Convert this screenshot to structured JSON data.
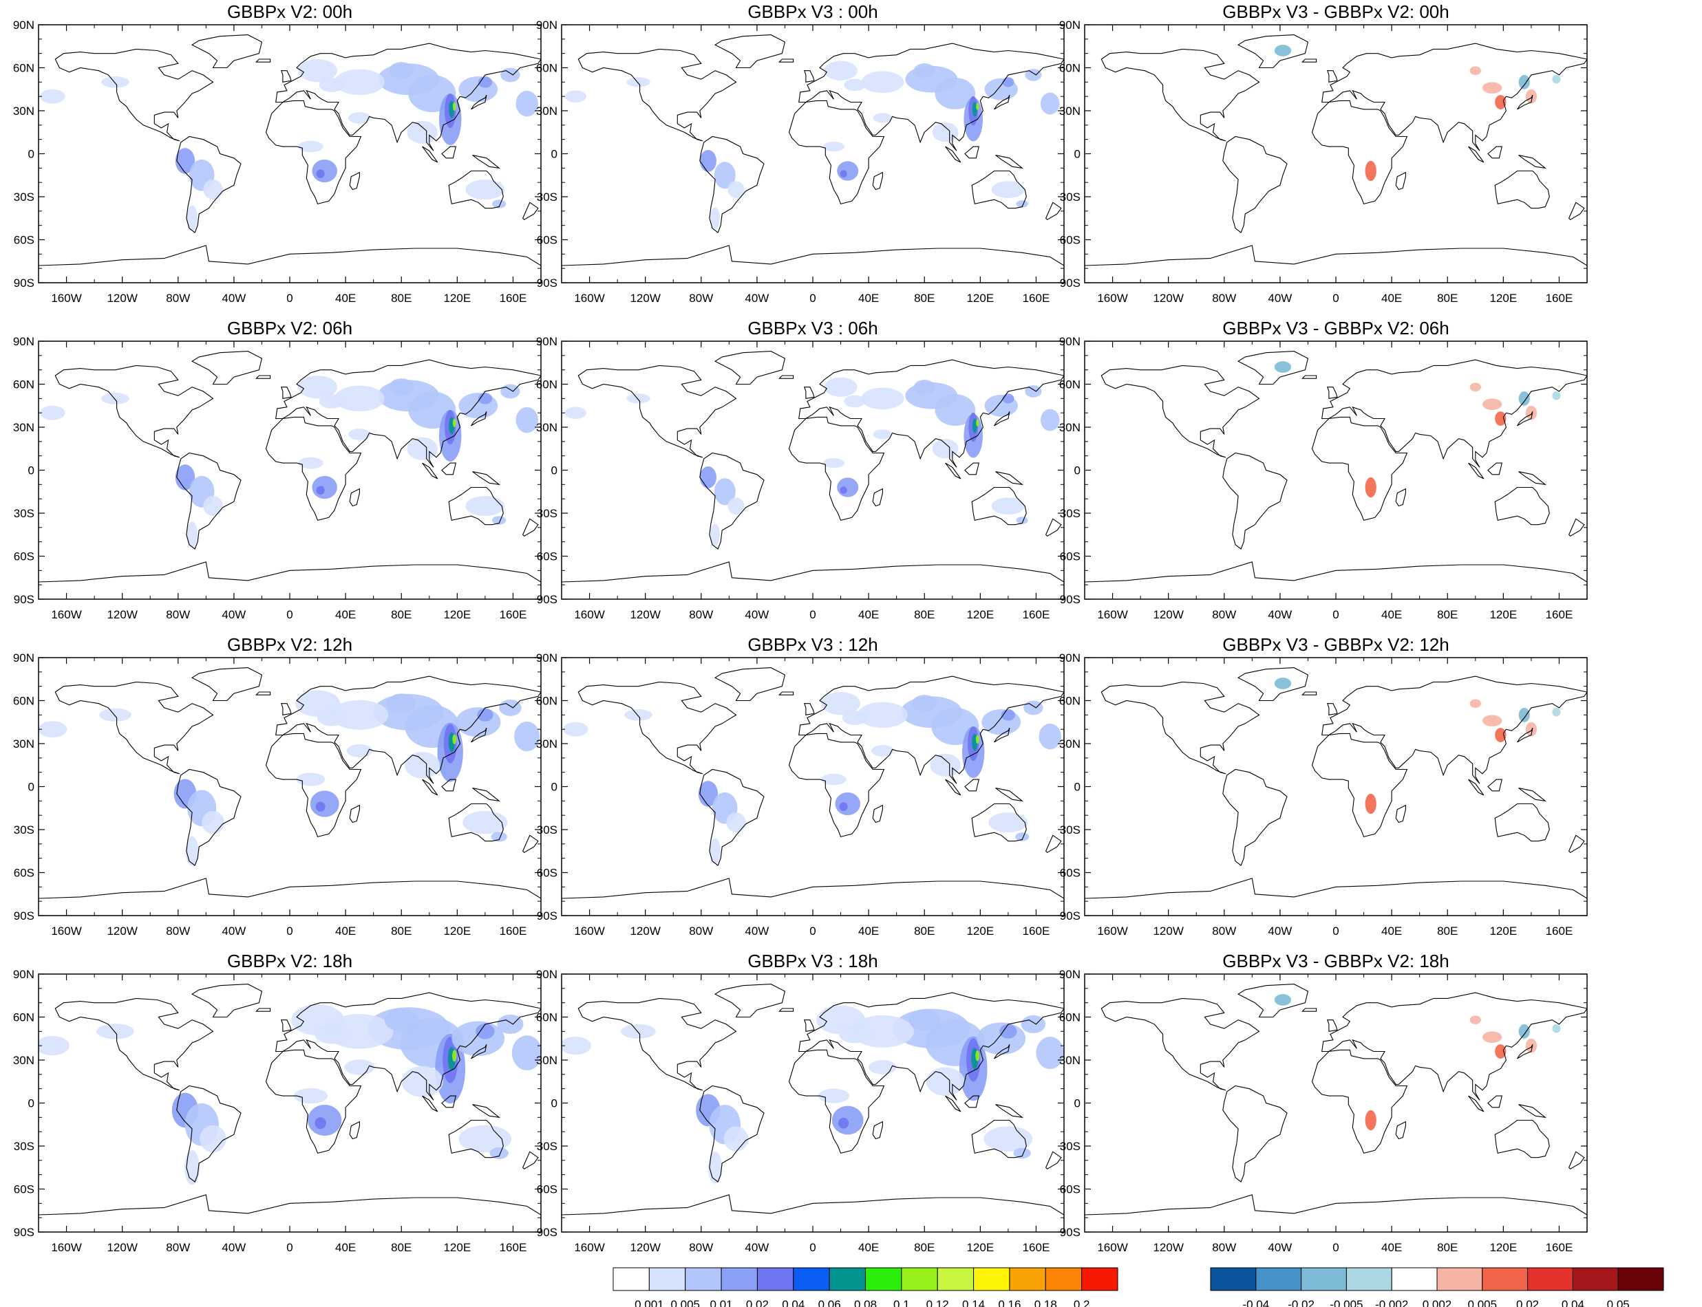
{
  "panels": [
    {
      "title": "GBBPx V2: 00h",
      "kind": "abs",
      "scale": 1.0
    },
    {
      "title": "GBBPx V3 : 00h",
      "kind": "abs",
      "scale": 0.85
    },
    {
      "title": "GBBPx V3 - GBBPx V2: 00h",
      "kind": "diff",
      "scale": 1.0
    },
    {
      "title": "GBBPx V2: 06h",
      "kind": "abs",
      "scale": 1.0
    },
    {
      "title": "GBBPx V3 : 06h",
      "kind": "abs",
      "scale": 0.85
    },
    {
      "title": "GBBPx V3 - GBBPx V2: 06h",
      "kind": "diff",
      "scale": 1.0
    },
    {
      "title": "GBBPx V2: 12h",
      "kind": "abs",
      "scale": 1.15
    },
    {
      "title": "GBBPx V3 : 12h",
      "kind": "abs",
      "scale": 1.0
    },
    {
      "title": "GBBPx V3 - GBBPx V2: 12h",
      "kind": "diff",
      "scale": 1.0
    },
    {
      "title": "GBBPx V2: 18h",
      "kind": "abs",
      "scale": 1.35
    },
    {
      "title": "GBBPx V3 : 18h",
      "kind": "abs",
      "scale": 1.25
    },
    {
      "title": "GBBPx V3 - GBBPx V2: 18h",
      "kind": "diff",
      "scale": 1.0
    }
  ],
  "lat_labels": [
    "90N",
    "60N",
    "30N",
    "0",
    "30S",
    "60S",
    "90S"
  ],
  "lon_labels": [
    "160W",
    "120W",
    "80W",
    "40W",
    "0",
    "40E",
    "80E",
    "120E",
    "160E"
  ],
  "colorbars": [
    {
      "name": "absolute",
      "labels": [
        "0.001",
        "0.005",
        "0.01",
        "0.02",
        "0.04",
        "0.06",
        "0.08",
        "0.1",
        "0.12",
        "0.14",
        "0.16",
        "0.18",
        "0.2"
      ],
      "colors": [
        "#ffffff",
        "#d7e2fd",
        "#b2c6fb",
        "#8a9ff6",
        "#6f74f1",
        "#0a5ef5",
        "#02958f",
        "#2bee0a",
        "#97f01a",
        "#c8f540",
        "#fdf406",
        "#f9a204",
        "#fb8306",
        "#f81904"
      ]
    },
    {
      "name": "difference",
      "labels": [
        "-0.04",
        "-0.02",
        "-0.005",
        "-0.002",
        "0.002",
        "0.005",
        "0.02",
        "0.04",
        "0.05"
      ],
      "colors": [
        "#0a559c",
        "#4592c9",
        "#7cbad6",
        "#abd8e3",
        "#ffffff",
        "#f6b5a4",
        "#f3654a",
        "#e6322c",
        "#a6171c",
        "#6a0209"
      ]
    }
  ],
  "features": {
    "abs": [
      [
        102,
        42,
        17,
        13,
        "#b2c6fb"
      ],
      [
        85,
        52,
        22,
        11,
        "#b2c6fb"
      ],
      [
        50,
        50,
        18,
        9,
        "#d7e2fd"
      ],
      [
        20,
        58,
        14,
        8,
        "#d7e2fd"
      ],
      [
        115,
        24,
        8,
        18,
        "#8a9ff6"
      ],
      [
        115,
        30,
        4,
        12,
        "#6f74f1"
      ],
      [
        116,
        31,
        2,
        6,
        "#02958f"
      ],
      [
        118,
        33,
        1.2,
        3,
        "#97f01a"
      ],
      [
        135,
        45,
        14,
        9,
        "#b2c6fb"
      ],
      [
        140,
        50,
        5,
        4,
        "#8a9ff6"
      ],
      [
        158,
        55,
        7,
        5,
        "#b2c6fb"
      ],
      [
        170,
        35,
        8,
        9,
        "#b2c6fb"
      ],
      [
        -75,
        -5,
        7,
        9,
        "#8a9ff6"
      ],
      [
        -63,
        -15,
        9,
        11,
        "#b2c6fb"
      ],
      [
        -55,
        -25,
        7,
        7,
        "#d7e2fd"
      ],
      [
        -70,
        -45,
        4,
        9,
        "#d7e2fd"
      ],
      [
        25,
        -12,
        9,
        8,
        "#8a9ff6"
      ],
      [
        22,
        -14,
        3,
        3,
        "#6f74f1"
      ],
      [
        15,
        5,
        9,
        4,
        "#d7e2fd"
      ],
      [
        95,
        15,
        11,
        8,
        "#d7e2fd"
      ],
      [
        80,
        58,
        9,
        6,
        "#b2c6fb"
      ],
      [
        -125,
        50,
        10,
        4,
        "#d7e2fd"
      ],
      [
        -170,
        40,
        9,
        5,
        "#d7e2fd"
      ],
      [
        140,
        -25,
        14,
        7,
        "#d7e2fd"
      ],
      [
        150,
        -35,
        5,
        3,
        "#b2c6fb"
      ],
      [
        50,
        25,
        8,
        4,
        "#d7e2fd"
      ],
      [
        30,
        48,
        9,
        5,
        "#d7e2fd"
      ]
    ],
    "diff": [
      [
        25,
        -12,
        4,
        7,
        "#f3654a"
      ],
      [
        112,
        46,
        7,
        4,
        "#f6b5a4"
      ],
      [
        118,
        36,
        4,
        5,
        "#f3654a"
      ],
      [
        140,
        40,
        4,
        5,
        "#f6b5a4"
      ],
      [
        135,
        50,
        4,
        5,
        "#7cbad6"
      ],
      [
        158,
        52,
        3,
        3,
        "#abd8e3"
      ],
      [
        -38,
        72,
        6,
        4,
        "#7cbad6"
      ],
      [
        100,
        58,
        4,
        3,
        "#f6b5a4"
      ]
    ]
  }
}
